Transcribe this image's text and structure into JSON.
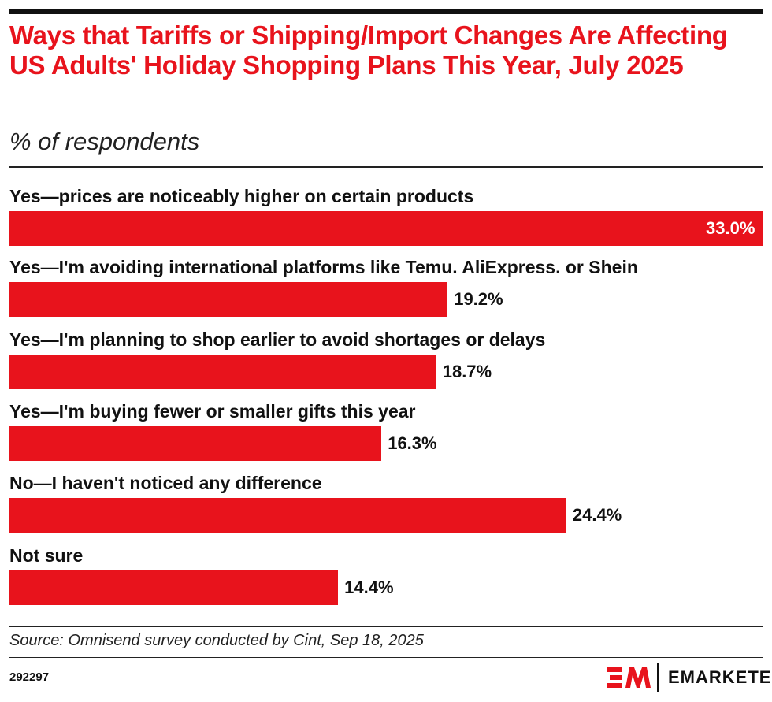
{
  "chart_data": {
    "type": "bar",
    "orientation": "horizontal",
    "title": "Ways that Tariffs or Shipping/Import Changes Are Affecting US Adults' Holiday Shopping Plans This Year, July 2025",
    "subtitle": "% of respondents",
    "categories": [
      "Yes—prices are noticeably higher on certain products",
      "Yes—I'm avoiding international platforms like Temu. AliExpress. or Shein",
      "Yes—I'm planning to shop earlier to avoid shortages or delays",
      "Yes—I'm buying fewer or smaller gifts this year",
      "No—I haven't noticed any difference",
      "Not sure"
    ],
    "values": [
      33.0,
      19.2,
      18.7,
      16.3,
      24.4,
      14.4
    ],
    "value_labels": [
      "33.0%",
      "19.2%",
      "18.7%",
      "16.3%",
      "24.4%",
      "14.4%"
    ],
    "xlim": [
      0,
      33.0
    ],
    "grid": false,
    "bar_color": "#e8131c"
  },
  "footer": {
    "source": "Source: Omnisend survey conducted by Cint, Sep 18, 2025",
    "chart_id": "292297",
    "logo_text": "EMARKETER"
  },
  "colors": {
    "accent": "#e8131c",
    "text": "#111111"
  }
}
